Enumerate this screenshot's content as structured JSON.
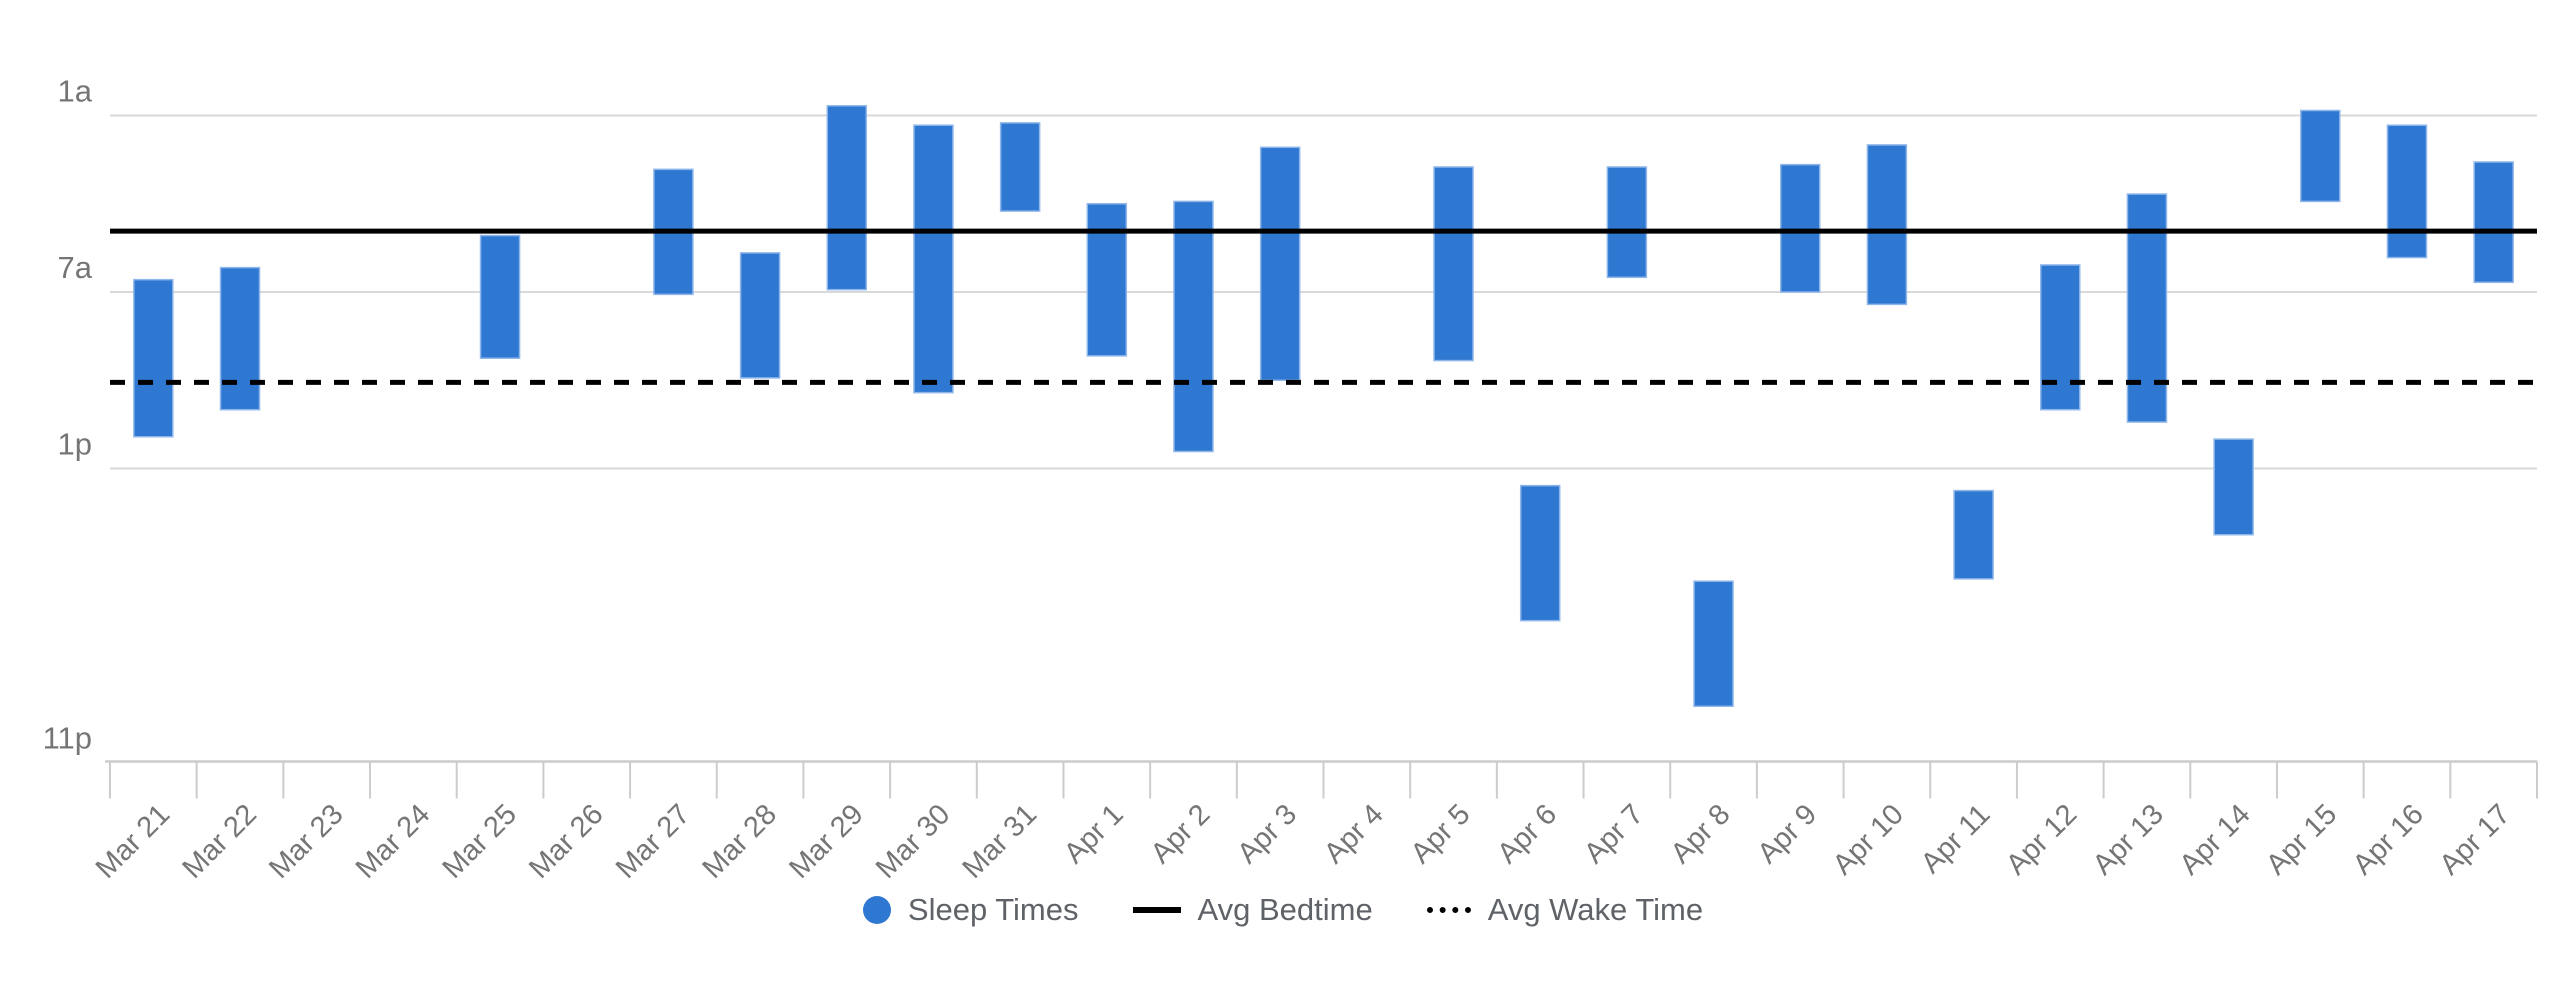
{
  "page": {
    "background": "#ffffff"
  },
  "chart_data": {
    "type": "bar",
    "subtype": "floating-range-columns-vertical-time",
    "title": "",
    "x_categories": [
      "Mar 21",
      "Mar 22",
      "Mar 23",
      "Mar 24",
      "Mar 25",
      "Mar 26",
      "Mar 27",
      "Mar 28",
      "Mar 29",
      "Mar 30",
      "Mar 31",
      "Apr 1",
      "Apr 2",
      "Apr 3",
      "Apr 4",
      "Apr 5",
      "Apr 6",
      "Apr 7",
      "Apr 8",
      "Apr 9",
      "Apr 10",
      "Apr 11",
      "Apr 12",
      "Apr 13",
      "Apr 14",
      "Apr 15",
      "Apr 16",
      "Apr 17"
    ],
    "y_axis": {
      "tick_labels": [
        "1a",
        "7a",
        "1p",
        "11p"
      ],
      "tick_hours": [
        1,
        7,
        13,
        23
      ],
      "ylim_hours": [
        -2.4,
        23
      ],
      "orientation": "time of day increases downward",
      "grid": true
    },
    "sleep_times": [
      {
        "date": "Mar 21",
        "bed": "6:35a",
        "wake": "11:55a",
        "bed_h": 6.58,
        "wake_h": 11.92
      },
      {
        "date": "Mar 22",
        "bed": "6:10a",
        "wake": "11:00a",
        "bed_h": 6.17,
        "wake_h": 11.0
      },
      {
        "date": "Mar 23",
        "bed": null,
        "wake": null,
        "bed_h": null,
        "wake_h": null
      },
      {
        "date": "Mar 24",
        "bed": null,
        "wake": null,
        "bed_h": null,
        "wake_h": null
      },
      {
        "date": "Mar 25",
        "bed": "5:05a",
        "wake": "9:15a",
        "bed_h": 5.08,
        "wake_h": 9.25
      },
      {
        "date": "Mar 26",
        "bed": null,
        "wake": null,
        "bed_h": null,
        "wake_h": null
      },
      {
        "date": "Mar 27",
        "bed": "2:50a",
        "wake": "7:05a",
        "bed_h": 2.83,
        "wake_h": 7.08
      },
      {
        "date": "Mar 28",
        "bed": "5:40a",
        "wake": "9:55a",
        "bed_h": 5.67,
        "wake_h": 9.92
      },
      {
        "date": "Mar 29",
        "bed": "12:40a",
        "wake": "6:55a",
        "bed_h": 0.67,
        "wake_h": 6.92
      },
      {
        "date": "Mar 30",
        "bed": "1:20a",
        "wake": "10:25a",
        "bed_h": 1.33,
        "wake_h": 10.42
      },
      {
        "date": "Mar 31",
        "bed": "1:15a",
        "wake": "4:15a",
        "bed_h": 1.25,
        "wake_h": 4.25
      },
      {
        "date": "Apr 1",
        "bed": "4:00a",
        "wake": "9:10a",
        "bed_h": 4.0,
        "wake_h": 9.17
      },
      {
        "date": "Apr 2",
        "bed": "3:55a",
        "wake": "12:25p",
        "bed_h": 3.92,
        "wake_h": 12.42
      },
      {
        "date": "Apr 3",
        "bed": "2:05a",
        "wake": "10:00a",
        "bed_h": 2.08,
        "wake_h": 10.0
      },
      {
        "date": "Apr 4",
        "bed": null,
        "wake": null,
        "bed_h": null,
        "wake_h": null
      },
      {
        "date": "Apr 5",
        "bed": "2:45a",
        "wake": "9:20a",
        "bed_h": 2.75,
        "wake_h": 9.33
      },
      {
        "date": "Apr 6",
        "bed": "1:35p",
        "wake": "6:10p",
        "bed_h": 13.58,
        "wake_h": 18.17
      },
      {
        "date": "Apr 7",
        "bed": "2:45a",
        "wake": "6:30a",
        "bed_h": 2.75,
        "wake_h": 6.5
      },
      {
        "date": "Apr 8",
        "bed": "4:50p",
        "wake": "9:05p",
        "bed_h": 16.83,
        "wake_h": 21.08
      },
      {
        "date": "Apr 9",
        "bed": "2:40a",
        "wake": "7:00a",
        "bed_h": 2.67,
        "wake_h": 7.0
      },
      {
        "date": "Apr 10",
        "bed": "2:00a",
        "wake": "7:25a",
        "bed_h": 2.0,
        "wake_h": 7.42
      },
      {
        "date": "Apr 11",
        "bed": "1:45p",
        "wake": "4:45p",
        "bed_h": 13.75,
        "wake_h": 16.75
      },
      {
        "date": "Apr 12",
        "bed": "6:05a",
        "wake": "11:00a",
        "bed_h": 6.08,
        "wake_h": 11.0
      },
      {
        "date": "Apr 13",
        "bed": "3:40a",
        "wake": "11:25a",
        "bed_h": 3.67,
        "wake_h": 11.42
      },
      {
        "date": "Apr 14",
        "bed": "12:00p",
        "wake": "3:15p",
        "bed_h": 12.0,
        "wake_h": 15.25
      },
      {
        "date": "Apr 15",
        "bed": "12:50a",
        "wake": "3:55a",
        "bed_h": 0.83,
        "wake_h": 3.92
      },
      {
        "date": "Apr 16",
        "bed": "1:20a",
        "wake": "5:50a",
        "bed_h": 1.33,
        "wake_h": 5.83
      },
      {
        "date": "Apr 17",
        "bed": "2:35a",
        "wake": "6:40a",
        "bed_h": 2.58,
        "wake_h": 6.67
      }
    ],
    "avg_bedtime": {
      "label": "Avg Bedtime",
      "time": "4:55a",
      "hour": 4.93,
      "style": "solid"
    },
    "avg_wake_time": {
      "label": "Avg Wake Time",
      "time": "10:05a",
      "hour": 10.07,
      "style": "dotted"
    },
    "legend": [
      {
        "label": "Sleep Times",
        "marker": "circle"
      },
      {
        "label": "Avg Bedtime",
        "marker": "solid-line"
      },
      {
        "label": "Avg Wake Time",
        "marker": "dotted-line"
      }
    ],
    "legend_position": "bottom-center",
    "colors": {
      "bar_fill": "#2f78d2",
      "bar_stroke": "#8fb6ea",
      "avg_line": "#000000",
      "gridline": "#d9d9d9",
      "axis_line": "#cccccc",
      "axis_text": "#757575",
      "legend_text": "#5f6368"
    }
  }
}
